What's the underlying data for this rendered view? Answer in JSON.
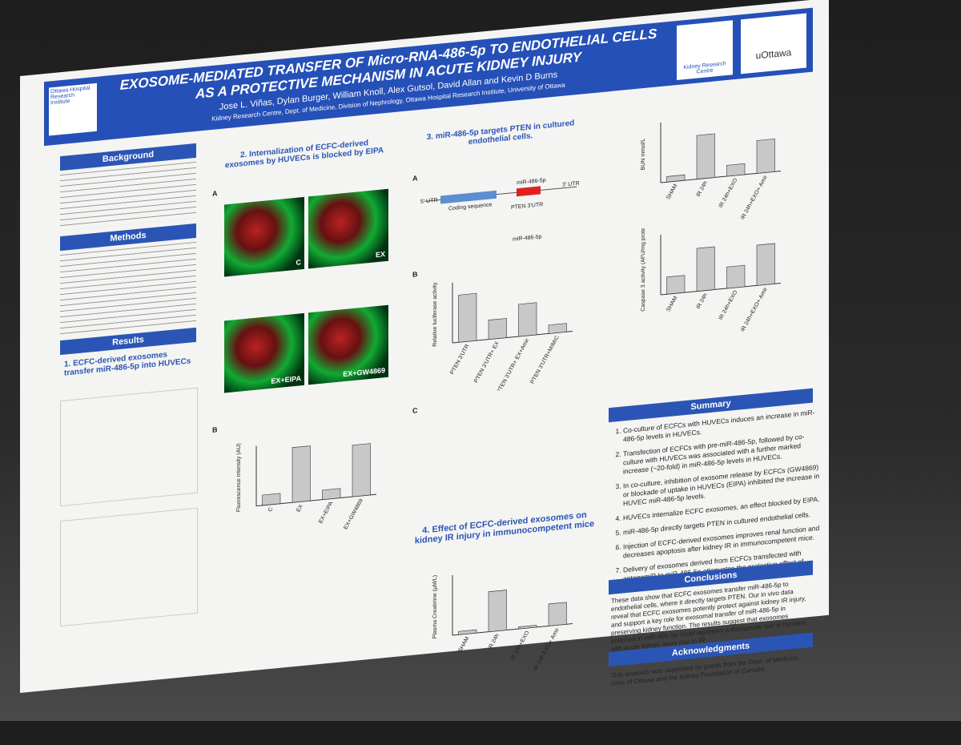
{
  "header": {
    "title": "EXOSOME-MEDIATED TRANSFER OF Micro-RNA-486-5p TO ENDOTHELIAL CELLS AS A PROTECTIVE MECHANISM IN ACUTE KIDNEY INJURY",
    "authors": "Jose L. Viñas, Dylan Burger, William Knoll, Alex Gutsol, David Allan and Kevin D Burns",
    "affiliation": "Kidney Research Centre, Dept. of Medicine, Division of Nephrology, Ottawa Hospital Research Institute, University of Ottawa",
    "left_logo": "Ottawa Hospital Research Institute",
    "krc_logo": "Kidney Research Centre",
    "uottawa_logo": "uOttawa"
  },
  "sections": {
    "background": "Background",
    "methods": "Methods",
    "results": "Results",
    "results_1": "1. ECFC-derived exosomes transfer miR-486-5p into HUVECs",
    "section_2": "2. Internalization of ECFC-derived exosomes by HUVECs is blocked by EIPA",
    "section_3": "3. miR-486-5p targets PTEN in cultured endothelial cells.",
    "section_4": "4. Effect of ECFC-derived exosomes on kidney IR injury in immunocompetent mice",
    "summary": "Summary",
    "conclusions": "Conclusions",
    "acknowledgments": "Acknowledgments"
  },
  "micrographs": [
    "C",
    "EX",
    "EX+EIPA",
    "EX+GW4869"
  ],
  "panel_labels": [
    "A",
    "B",
    "C"
  ],
  "summary_items": [
    "Co-culture of ECFCs with HUVECs induces an increase in miR-486-5p levels in HUVECs.",
    "Transfection of ECFCs with pre-miR-486-5p, followed by co-culture with HUVECs was associated with a further marked increase (~20-fold) in miR-486-5p levels in HUVECs.",
    "In co-culture, inhibition of exosome release by ECFCs (GW4869) or blockade of uptake in HUVECs (EIPA) inhibited the increase in HUVEC miR-486-5p levels.",
    "HUVECs internalize ECFC exosomes, an effect blocked by EIPA.",
    "miR-486-5p directly targets PTEN in cultured endothelial cells.",
    "Injection of ECFC-derived exosomes improves renal function and decreases apoptosis after kidney IR in immunocompetent mice.",
    "Delivery of exosomes derived from ECFCs transfected with antagomiR to miR-486-5p attenuates the protective effect of exosomes"
  ],
  "conclusions_text": "These data show that ECFC exosomes transfer miR-486-5p to endothelial cells, where it directly targets PTEN. Our in vivo data reveal that ECFC exosomes potently protect against kidney IR injury, and support a key role for exosomal transfer of miR-486-5p in preserving kidney function. The results suggest that exosomes enriched in miR-486-5p could represent a therapeutic tool in humans with acute kidney injury due to IR.",
  "acknowledgments_text": "This research was supported by grants from the Dept. of Medicine, Univ. of Ottawa and the Kidney Foundation of Canada.",
  "utr_labels": {
    "utr5": "5' UTR",
    "coding": "Coding sequence",
    "utr3": "3' UTR",
    "mirna": "miR-486-5p",
    "pten": "PTEN 3'UTR"
  },
  "chart_data": [
    {
      "type": "bar",
      "ylabel": "Fluorescence intensity (AU)",
      "categories": [
        "C",
        "EX",
        "EX+EIPA",
        "EX+GW4869"
      ],
      "values": [
        60,
        320,
        55,
        300
      ],
      "ylim": [
        0,
        350
      ],
      "color": "#c8c8c8"
    },
    {
      "type": "bar",
      "ylabel": "Relative luciferase activity",
      "categories": [
        "PTEN 3'UTR",
        "PTEN 3'UTR+ EX",
        "PTEN 3'UTR+ EX+Amir",
        "PTEN 3'UTR+MIMIC"
      ],
      "values": [
        1.1,
        0.45,
        0.75,
        0.2
      ],
      "ylim": [
        0,
        1.4
      ],
      "color": "#c8c8c8"
    },
    {
      "type": "bar",
      "ylabel": "Plasma Creatinine (µM/L)",
      "categories": [
        "SHAM",
        "IR 24h",
        "IR 24h+EXO",
        "IR 24h EXO+ Amir"
      ],
      "values": [
        8,
        100,
        5,
        55
      ],
      "ylim": [
        0,
        150
      ],
      "color": "#c8c8c8"
    },
    {
      "type": "bar",
      "ylabel": "BUN mmol/L",
      "categories": [
        "SHAM",
        "IR 24h",
        "IR 24h+EXO",
        "IR 24h+EXO+ Amir"
      ],
      "values": [
        5,
        40,
        10,
        30
      ],
      "ylim": [
        0,
        55
      ],
      "color": "#c8c8c8"
    },
    {
      "type": "bar",
      "ylabel": "Caspase 3 activity (AFU/mg protein)",
      "categories": [
        "SHAM",
        "IR 24h",
        "IR 24h+EXO",
        "IR 24h+EXO+ Amir"
      ],
      "values": [
        2000,
        5000,
        2500,
        4700
      ],
      "ylim": [
        0,
        7000
      ],
      "color": "#c8c8c8"
    }
  ]
}
